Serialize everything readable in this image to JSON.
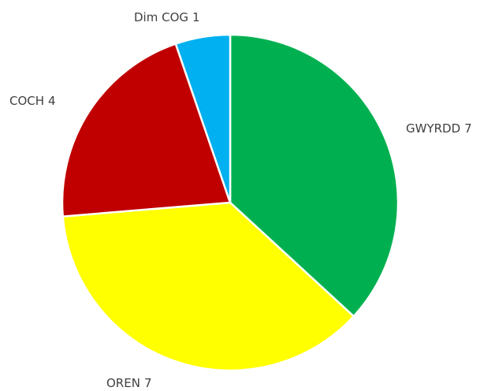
{
  "chart_data": {
    "type": "pie",
    "categories": [
      "GWYRDD",
      "OREN",
      "COCH",
      "Dim COG"
    ],
    "values": [
      7,
      7,
      4,
      1
    ],
    "colors": [
      "#00b050",
      "#ffff00",
      "#c00000",
      "#00b0f0"
    ]
  }
}
